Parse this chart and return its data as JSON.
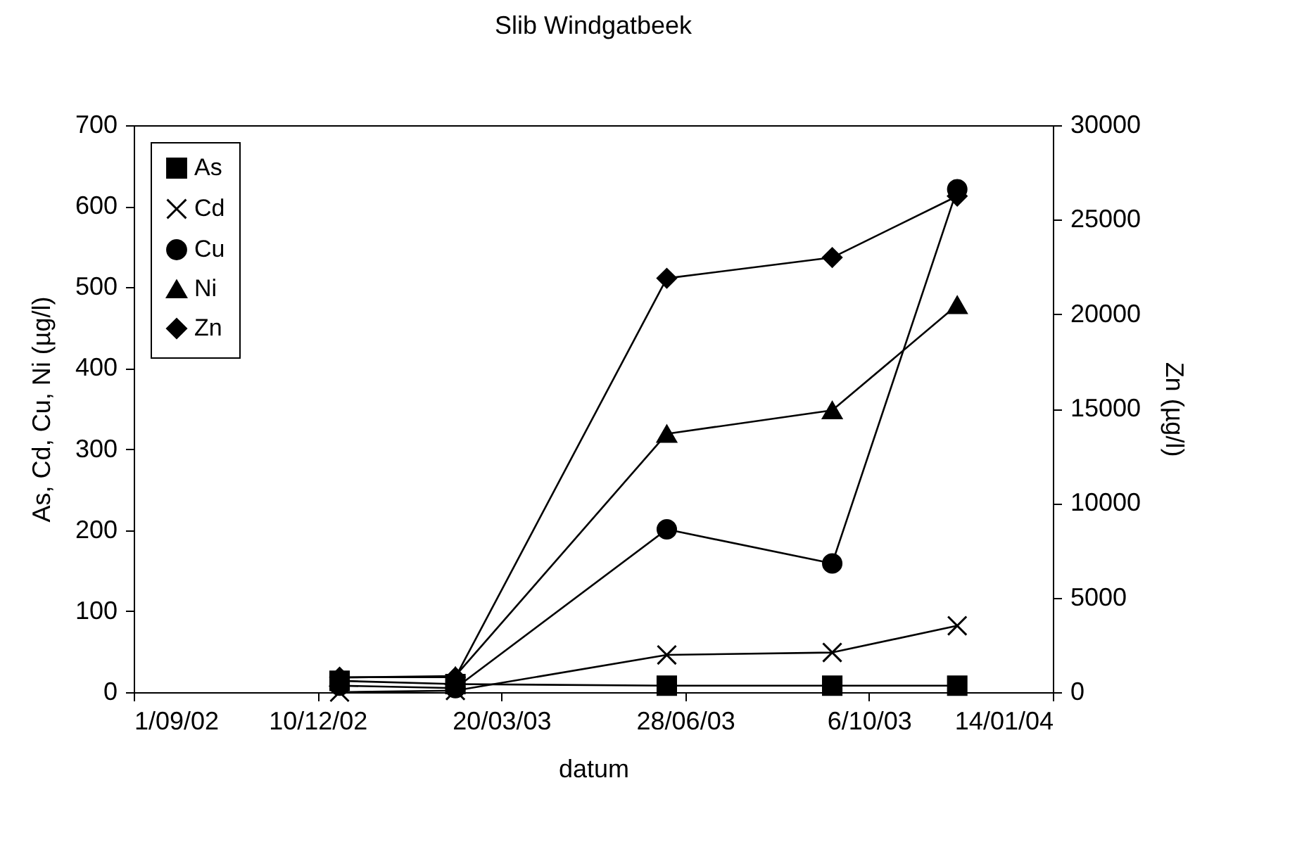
{
  "chart_data": {
    "type": "line",
    "title": "Slib Windgatbeek",
    "xlabel": "datum",
    "ylabel": "As, Cd, Cu, Ni (µg/l)",
    "y2label": "Zn (µg/l)",
    "x": [
      "2002-12-22",
      "2003-02-23",
      "2003-06-18",
      "2003-09-16",
      "2003-11-23"
    ],
    "series": [
      {
        "name": "As",
        "color": "#000000",
        "marker": "square",
        "values": [
          14,
          10,
          8,
          8,
          8
        ]
      },
      {
        "name": "Cd",
        "color": "#000000",
        "marker": "cross",
        "values": [
          0,
          2,
          46,
          49,
          82
        ]
      },
      {
        "name": "Cu",
        "color": "#000000",
        "marker": "circle",
        "values": [
          8,
          5,
          201,
          159,
          621
        ]
      },
      {
        "name": "Ni",
        "color": "#000000",
        "marker": "triangle",
        "values": [
          18,
          20,
          319,
          348,
          478
        ]
      },
      {
        "name": "Zn",
        "color": "#000000",
        "marker": "diamond",
        "axis": "y2",
        "values": [
          790,
          790,
          21900,
          23000,
          26250
        ]
      }
    ],
    "xlim": [
      "2002-09-01",
      "2004-01-14"
    ],
    "xticks": [
      {
        "value": "2002-09-01",
        "label": "1/09/02"
      },
      {
        "value": "2002-12-10",
        "label": "10/12/02"
      },
      {
        "value": "2003-03-20",
        "label": "20/03/03"
      },
      {
        "value": "2003-06-28",
        "label": "28/06/03"
      },
      {
        "value": "2003-10-06",
        "label": "6/10/03"
      },
      {
        "value": "2004-01-14",
        "label": "14/01/04"
      }
    ],
    "ylim": [
      0,
      700
    ],
    "yticks": [
      0,
      100,
      200,
      300,
      400,
      500,
      600,
      700
    ],
    "y2lim": [
      0,
      30000
    ],
    "y2ticks": [
      0,
      5000,
      10000,
      15000,
      20000,
      25000,
      30000
    ],
    "grid": false,
    "legend": "top left",
    "line_style": "solid"
  }
}
